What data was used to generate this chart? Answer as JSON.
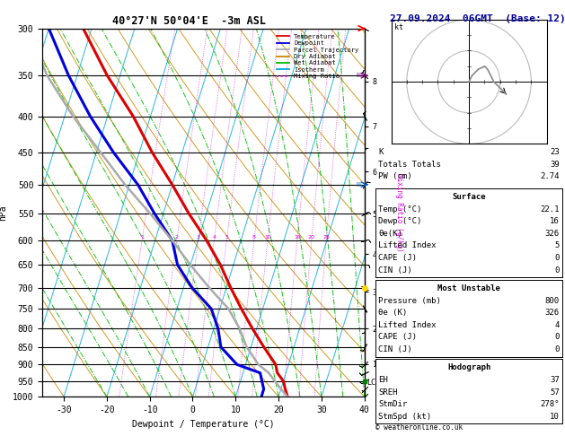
{
  "title_left": "40°27'N 50°04'E  -3m ASL",
  "title_right": "27.09.2024  06GMT  (Base: 12)",
  "xlabel": "Dewpoint / Temperature (°C)",
  "ylabel_left": "hPa",
  "pressure_levels": [
    300,
    350,
    400,
    450,
    500,
    550,
    600,
    650,
    700,
    750,
    800,
    850,
    900,
    950,
    1000
  ],
  "xlim": [
    -35,
    40
  ],
  "xticks": [
    -30,
    -20,
    -10,
    0,
    10,
    20,
    30,
    40
  ],
  "bg_color": "#ffffff",
  "color_temp": "#dd0000",
  "color_dewp": "#0000dd",
  "color_parcel": "#aaaaaa",
  "color_dry_adiabat": "#cc8800",
  "color_wet_adiabat": "#00bb00",
  "color_isotherm": "#00aadd",
  "color_mixing": "#dd00dd",
  "legend_labels": [
    "Temperature",
    "Dewpoint",
    "Parcel Trajectory",
    "Dry Adiabat",
    "Wet Adiabat",
    "Isotherm",
    "Mixing Ratio"
  ],
  "legend_colors": [
    "#dd0000",
    "#0000dd",
    "#aaaaaa",
    "#cc8800",
    "#00bb00",
    "#00aadd",
    "#dd00dd"
  ],
  "legend_styles": [
    "-",
    "-",
    "-",
    "-",
    "-",
    "-",
    ":"
  ],
  "stats_text": [
    [
      "K",
      "23"
    ],
    [
      "Totals Totals",
      "39"
    ],
    [
      "PW (cm)",
      "2.74"
    ]
  ],
  "surface_text": [
    [
      "Surface",
      ""
    ],
    [
      "Temp (°C)",
      "22.1"
    ],
    [
      "Dewp (°C)",
      "16"
    ],
    [
      "θe(K)",
      "326"
    ],
    [
      "Lifted Index",
      "5"
    ],
    [
      "CAPE (J)",
      "0"
    ],
    [
      "CIN (J)",
      "0"
    ]
  ],
  "unstable_text": [
    [
      "Most Unstable",
      ""
    ],
    [
      "Pressure (mb)",
      "800"
    ],
    [
      "θe (K)",
      "326"
    ],
    [
      "Lifted Index",
      "4"
    ],
    [
      "CAPE (J)",
      "0"
    ],
    [
      "CIN (J)",
      "0"
    ]
  ],
  "hodograph_text": [
    [
      "Hodograph",
      ""
    ],
    [
      "EH",
      "37"
    ],
    [
      "SREH",
      "57"
    ],
    [
      "StmDir",
      "278°"
    ],
    [
      "StmSpd (kt)",
      "10"
    ]
  ],
  "mixing_ratio_labels": [
    1,
    2,
    3,
    4,
    5,
    8,
    10,
    16,
    20,
    25
  ],
  "km_pressures": {
    "1": 898,
    "2": 800,
    "3": 710,
    "4": 627,
    "5": 550,
    "6": 479,
    "7": 413,
    "8": 357
  },
  "lcl_label": "LCL",
  "lcl_pressure": 955,
  "copyright": "© weatheronline.co.uk",
  "temp_p": [
    1000,
    975,
    950,
    925,
    900,
    850,
    800,
    750,
    700,
    650,
    600,
    550,
    500,
    450,
    400,
    350,
    300
  ],
  "temp_T": [
    22.1,
    21,
    20,
    18,
    17,
    13,
    9,
    5,
    1,
    -3,
    -8,
    -14,
    -20,
    -27,
    -34,
    -43,
    -52
  ],
  "dewp_T": [
    16,
    16,
    15,
    14,
    8,
    3,
    1,
    -2,
    -8,
    -13,
    -16,
    -22,
    -28,
    -36,
    -44,
    -52,
    -60
  ],
  "parcel_T": [
    22.1,
    20,
    18,
    16,
    13,
    9,
    6,
    2,
    -4,
    -10,
    -16,
    -23,
    -31,
    -39,
    -48,
    -57,
    -65
  ]
}
